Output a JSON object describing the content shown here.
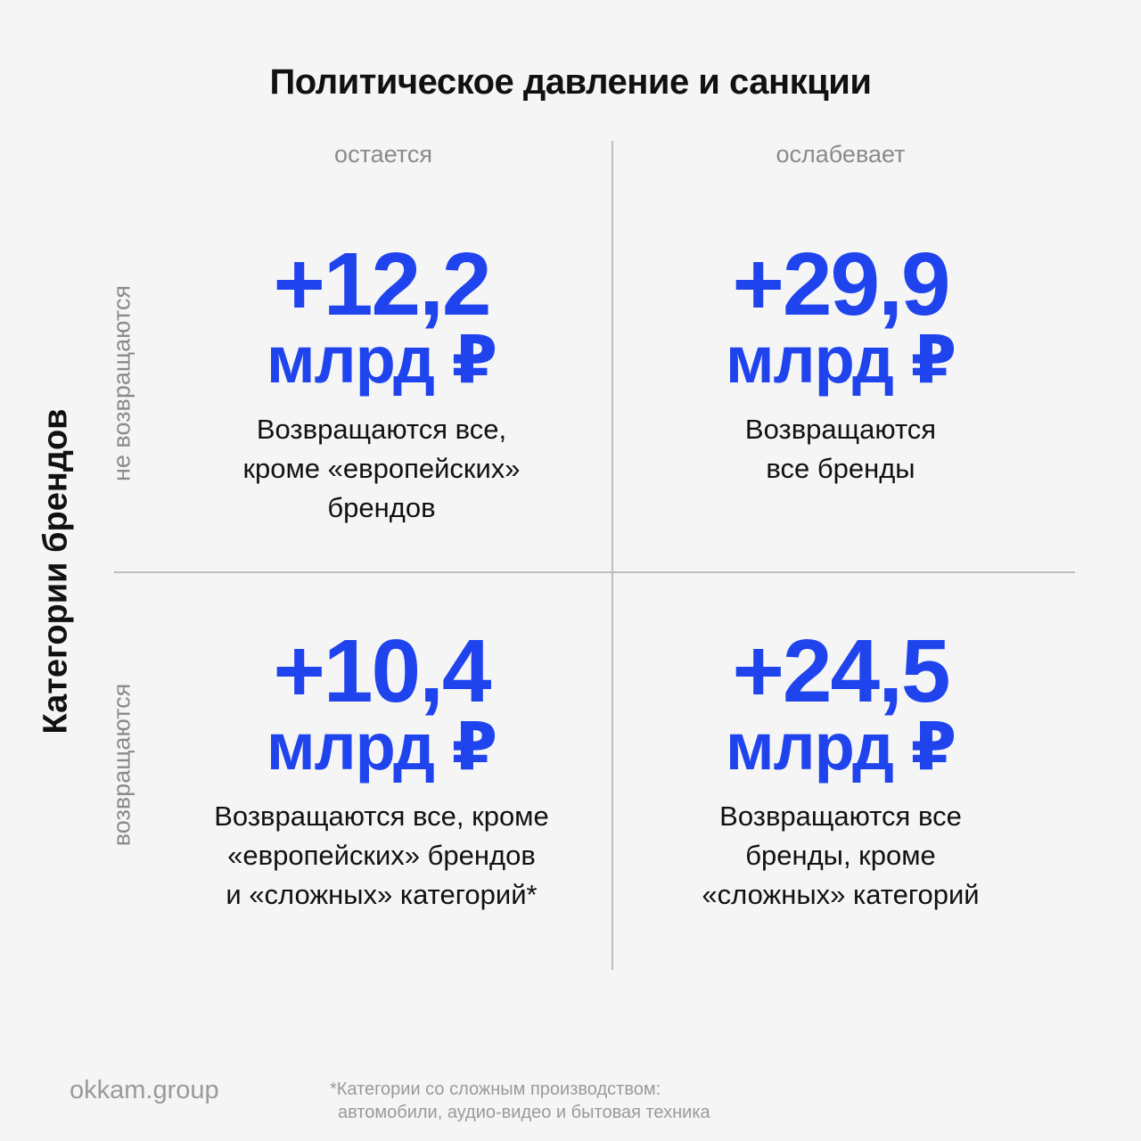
{
  "title": "Политическое давление и санкции",
  "columns": [
    "остается",
    "ослабевает"
  ],
  "y_axis_title": "Категории брендов",
  "rows": [
    "не возвращаются",
    "возвращаются"
  ],
  "cells": {
    "top_left": {
      "value": "+12,2",
      "unit": "млрд ₽",
      "description": "Возвращаются все,\nкроме «европейских»\nбрендов"
    },
    "top_right": {
      "value": "+29,9",
      "unit": "млрд ₽",
      "description": "Возвращаются\nвсе бренды"
    },
    "bottom_left": {
      "value": "+10,4",
      "unit": "млрд ₽",
      "description": "Возвращаются все, кроме\n«европейских» брендов\nи «сложных» категорий*"
    },
    "bottom_right": {
      "value": "+24,5",
      "unit": "млрд ₽",
      "description": "Возвращаются все\nбренды, кроме\n«сложных» категорий"
    }
  },
  "footer": {
    "logo": "okkam.group",
    "footnote_line1": "*Категории со сложным производством:",
    "footnote_line2": "автомобили, аудио-видео и бытовая техника"
  },
  "colors": {
    "accent": "#1f44ee",
    "muted": "#8a8a8a",
    "background": "#f5f5f5"
  }
}
